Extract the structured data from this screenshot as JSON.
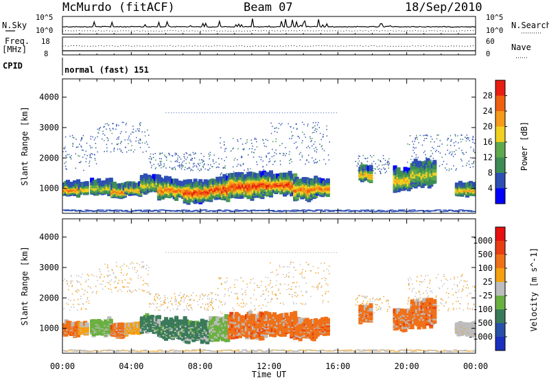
{
  "header": {
    "station": "McMurdo (fitACF)",
    "beam": "Beam 07",
    "date": "18/Sep/2010"
  },
  "panels": {
    "noise": {
      "left_label": "N.Sky",
      "left_ticks": [
        "10^5",
        "10^0"
      ],
      "right_label": "N.Search",
      "right_ticks": [
        "10^5",
        "10^0"
      ]
    },
    "freq": {
      "left_label_1": "Freq.",
      "left_label_2": "[MHz]",
      "left_ticks": [
        "18",
        "8"
      ],
      "right_label": "Nave",
      "right_ticks": [
        "60",
        "0"
      ]
    },
    "cpid": {
      "label": "CPID",
      "text": "normal (fast) 151"
    }
  },
  "colors": {
    "power_scale": [
      "#0000ff",
      "#2d4fb3",
      "#3d8c55",
      "#5fa84d",
      "#f0d020",
      "#f59a1a",
      "#f06010",
      "#e81e10"
    ],
    "velocity_scale": [
      "#1a2fbf",
      "#2850a8",
      "#3a7a5a",
      "#6ab040",
      "#bdbdbd",
      "#f5a010",
      "#f07018",
      "#e83e12",
      "#e81010"
    ]
  },
  "chart_data": [
    {
      "type": "heatmap",
      "name": "power",
      "ylabel": "Slant Range [km]",
      "xlabel": "Time UT",
      "xticks": [
        "00:00",
        "04:00",
        "08:00",
        "12:00",
        "16:00",
        "20:00",
        "00:00"
      ],
      "yticks": [
        1000,
        2000,
        3000,
        4000
      ],
      "xlim_hours": [
        0,
        24
      ],
      "ylim_km": [
        180,
        4600
      ],
      "colorbar": {
        "label": "Power [dB]",
        "ticks": [
          4,
          8,
          12,
          16,
          20,
          24,
          28
        ]
      }
    },
    {
      "type": "heatmap",
      "name": "velocity",
      "ylabel": "Slant Range [km]",
      "xlabel": "Time UT",
      "xticks": [
        "00:00",
        "04:00",
        "08:00",
        "12:00",
        "16:00",
        "20:00",
        "00:00"
      ],
      "yticks": [
        1000,
        2000,
        3000,
        4000
      ],
      "xlim_hours": [
        0,
        24
      ],
      "ylim_km": [
        180,
        4600
      ],
      "colorbar": {
        "label": "Velocity [m s^-1]",
        "ticks": [
          1000,
          500,
          100,
          25,
          -25,
          -100,
          -500,
          -1000
        ]
      }
    }
  ]
}
